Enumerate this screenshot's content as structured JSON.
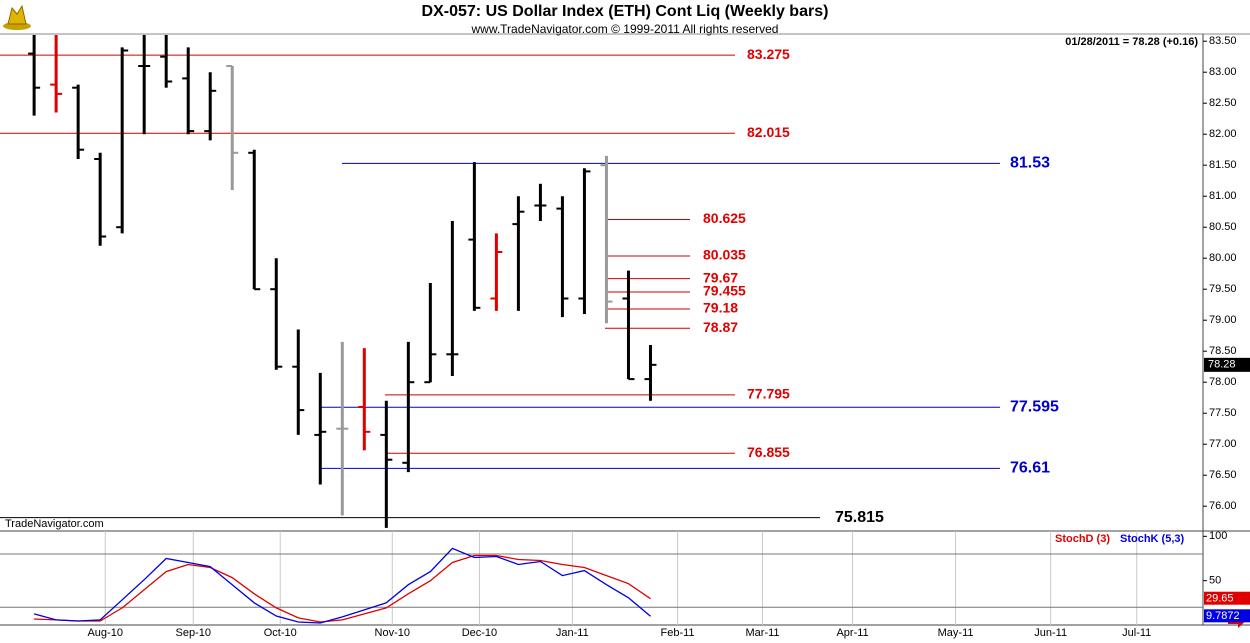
{
  "chart_data": [
    {
      "type": "ohlc",
      "title": "DX-057:  US Dollar Index (ETH) Cont Liq  (Weekly bars)",
      "subtitle": "www.TradeNavigator.com © 1999-2011 All rights reserved",
      "header_note": "01/28/2011 = 78.28 (+0.16)",
      "watermark": "TradeNavigator.com",
      "categories": [
        null,
        null,
        null,
        null,
        null,
        null,
        null,
        null,
        null,
        null,
        null,
        null,
        null,
        null,
        null,
        null,
        null,
        null,
        null,
        null,
        null,
        null,
        null,
        null,
        null,
        null,
        null,
        null,
        null
      ],
      "open": [
        83.3,
        82.8,
        82.75,
        81.6,
        80.5,
        83.1,
        83.25,
        82.9,
        82.05,
        83.1,
        81.7,
        79.5,
        78.25,
        77.15,
        77.25,
        77.6,
        77.15,
        76.7,
        78.0,
        78.45,
        80.3,
        79.35,
        80.55,
        80.85,
        80.8,
        79.35,
        81.5,
        79.35,
        78.05
      ],
      "high": [
        83.6,
        83.6,
        82.8,
        81.7,
        83.4,
        83.6,
        83.6,
        83.4,
        83.0,
        83.1,
        81.75,
        80.0,
        78.85,
        78.15,
        78.65,
        78.55,
        77.7,
        78.65,
        79.6,
        80.6,
        81.55,
        80.4,
        81.0,
        81.2,
        81.0,
        81.45,
        81.65,
        79.8,
        78.6
      ],
      "low": [
        82.3,
        82.35,
        81.6,
        80.2,
        80.4,
        82.0,
        82.75,
        82.0,
        81.9,
        81.1,
        79.5,
        78.2,
        77.15,
        76.35,
        75.85,
        76.9,
        75.65,
        76.55,
        78.0,
        78.1,
        79.15,
        79.15,
        79.15,
        80.6,
        79.05,
        79.1,
        78.95,
        78.05,
        77.7
      ],
      "close": [
        82.75,
        82.65,
        81.75,
        80.35,
        83.35,
        83.1,
        82.85,
        82.05,
        82.7,
        81.7,
        79.5,
        78.25,
        77.55,
        77.2,
        77.25,
        77.2,
        76.75,
        78.0,
        78.45,
        78.45,
        79.2,
        80.1,
        80.75,
        80.85,
        79.35,
        81.4,
        79.3,
        78.05,
        78.28
      ],
      "colors": [
        "#000000",
        "#e00000",
        "#000000",
        "#000000",
        "#000000",
        "#000000",
        "#000000",
        "#000000",
        "#000000",
        "#999999",
        "#000000",
        "#000000",
        "#000000",
        "#000000",
        "#999999",
        "#e00000",
        "#000000",
        "#000000",
        "#000000",
        "#000000",
        "#000000",
        "#e00000",
        "#000000",
        "#000000",
        "#000000",
        "#000000",
        "#999999",
        "#000000",
        "#000000"
      ],
      "xlim": [
        -1.55,
        53.1
      ],
      "ylim": [
        75.6,
        83.6
      ],
      "yticks": [
        {
          "value": 76,
          "label": "76.00"
        },
        {
          "value": 76.5,
          "label": "76.50"
        },
        {
          "value": 77,
          "label": "77.00"
        },
        {
          "value": 77.5,
          "label": "77.50"
        },
        {
          "value": 78,
          "label": "78.00"
        },
        {
          "value": 78.5,
          "label": "78.50"
        },
        {
          "value": 79,
          "label": "79.00"
        },
        {
          "value": 79.5,
          "label": "79.50"
        },
        {
          "value": 80,
          "label": "80.00"
        },
        {
          "value": 80.5,
          "label": "80.50"
        },
        {
          "value": 81,
          "label": "81.00"
        },
        {
          "value": 81.5,
          "label": "81.50"
        },
        {
          "value": 82,
          "label": "82.00"
        },
        {
          "value": 82.5,
          "label": "82.50"
        },
        {
          "value": 83,
          "label": "83.00"
        },
        {
          "value": 83.5,
          "label": "83.50"
        }
      ],
      "levels": [
        {
          "value": 83.275,
          "color": "#cc0000"
        },
        {
          "value": 82.015,
          "color": "#cc0000"
        },
        {
          "value": 81.53,
          "color": "#0000cc"
        },
        {
          "value": 80.625,
          "color": "#cc0000"
        },
        {
          "value": 80.035,
          "color": "#cc0000"
        },
        {
          "value": 79.67,
          "color": "#cc0000"
        },
        {
          "value": 79.455,
          "color": "#cc0000"
        },
        {
          "value": 79.18,
          "color": "#cc0000"
        },
        {
          "value": 78.87,
          "color": "#cc0000"
        },
        {
          "value": 77.795,
          "color": "#cc0000"
        },
        {
          "value": 77.595,
          "color": "#0000cc"
        },
        {
          "value": 76.855,
          "color": "#cc0000"
        },
        {
          "value": 76.61,
          "color": "#0000cc"
        },
        {
          "value": 75.815,
          "color": "#000000"
        }
      ]
    },
    {
      "type": "line",
      "categories": [
        null,
        null,
        null,
        null,
        null,
        null,
        null,
        null,
        null,
        null,
        null,
        null,
        null,
        null,
        null,
        null,
        null,
        null,
        null,
        null,
        null,
        null,
        null,
        null,
        null,
        null,
        null,
        null,
        null
      ],
      "series": [
        {
          "name": "StochD (3)",
          "color": "#e00000",
          "values": [
            6.8,
            5.7,
            4.5,
            4.5,
            19.3,
            39.8,
            60.2,
            68.2,
            64.8,
            53.4,
            35.2,
            19.3,
            8,
            3.4,
            5.7,
            12.5,
            19.3,
            35.2,
            50,
            70.5,
            78.4,
            78.4,
            73.9,
            72.7,
            68.2,
            64.8,
            55.7,
            46.6,
            29.65
          ]
        },
        {
          "name": "StochK (5,3)",
          "color": "#0000e0",
          "values": [
            12.5,
            5.7,
            4.5,
            5.7,
            28.4,
            51.1,
            75,
            70.5,
            65.9,
            45.5,
            25,
            10.2,
            3.4,
            2.3,
            9.1,
            17,
            25,
            45.5,
            60.2,
            86.4,
            76.1,
            77.3,
            68.2,
            71.6,
            55.7,
            61.4,
            45.5,
            30.7,
            9.7872
          ]
        }
      ],
      "xlim": [
        -1.55,
        53.1
      ],
      "xticks": [
        {
          "value": 3.23,
          "label": "Aug-10"
        },
        {
          "value": 7.23,
          "label": "Sep-10"
        },
        {
          "value": 11.18,
          "label": "Oct-10"
        },
        {
          "value": 16.27,
          "label": "Nov-10"
        },
        {
          "value": 20.23,
          "label": "Dec-10"
        },
        {
          "value": 24.45,
          "label": "Jan-11"
        },
        {
          "value": 29.23,
          "label": "Feb-11"
        },
        {
          "value": 33.09,
          "label": "Mar-11"
        },
        {
          "value": 37.18,
          "label": "Apr-11"
        },
        {
          "value": 41.86,
          "label": "May-11"
        },
        {
          "value": 46.18,
          "label": "Jun-11"
        },
        {
          "value": 50.09,
          "label": "Jul-11"
        }
      ],
      "ylim": [
        0,
        106
      ],
      "yticks": [
        100,
        50
      ],
      "reference_lines": [
        80,
        20
      ]
    }
  ]
}
